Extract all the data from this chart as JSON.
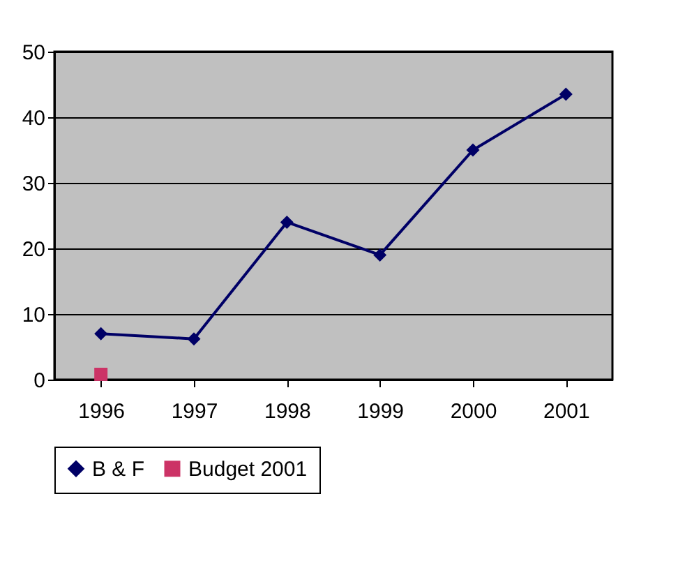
{
  "chart_data": {
    "type": "line",
    "categories": [
      "1996",
      "1997",
      "1998",
      "1999",
      "2000",
      "2001"
    ],
    "series": [
      {
        "name": "B & F",
        "color": "#000066",
        "marker": "diamond",
        "values": [
          7,
          6.2,
          24,
          19,
          35,
          43.5
        ]
      },
      {
        "name": "Budget 2001",
        "color": "#cc3366",
        "marker": "square",
        "values": [
          0.8,
          null,
          null,
          null,
          null,
          null
        ]
      }
    ],
    "ylim": [
      0,
      50
    ],
    "yticks": [
      0,
      10,
      20,
      30,
      40,
      50
    ],
    "grid": "y",
    "legend": "bottom",
    "line_style": "solid"
  }
}
